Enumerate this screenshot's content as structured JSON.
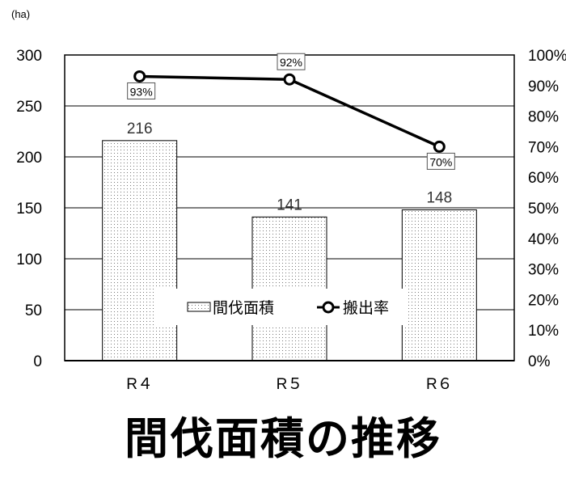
{
  "chart_data": {
    "type": "bar+line",
    "title": "間伐面積の推移",
    "y_unit_label": "(ha)",
    "categories": [
      "R４",
      "R５",
      "R６"
    ],
    "series": [
      {
        "name": "間伐面積",
        "type": "bar",
        "axis": "left",
        "values": [
          216,
          141,
          148
        ],
        "labels": [
          "216",
          "141",
          "148"
        ]
      },
      {
        "name": "搬出率",
        "type": "line",
        "axis": "right",
        "values": [
          93,
          92,
          70
        ],
        "labels": [
          "93%",
          "92%",
          "70%"
        ]
      }
    ],
    "y_left": {
      "min": 0,
      "max": 300,
      "ticks": [
        "0",
        "50",
        "100",
        "150",
        "200",
        "250",
        "300"
      ]
    },
    "y_right": {
      "min": 0,
      "max": 100,
      "ticks": [
        "0%",
        "10%",
        "20%",
        "30%",
        "40%",
        "50%",
        "60%",
        "70%",
        "80%",
        "90%",
        "100%"
      ]
    },
    "grid": true,
    "legend": "center-bottom inside"
  }
}
